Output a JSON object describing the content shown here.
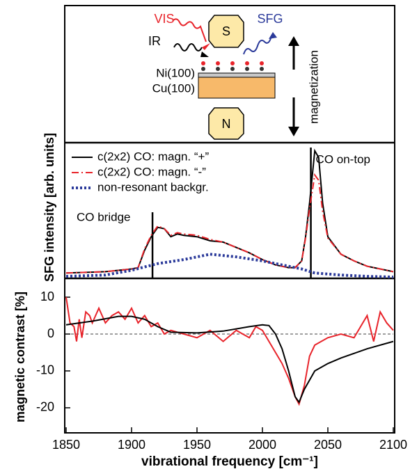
{
  "schematic": {
    "vis": "VIS",
    "ir": "IR",
    "sfg": "SFG",
    "south": "S",
    "north": "N",
    "ni": "Ni(100)",
    "cu": "Cu(100)",
    "magnetization": "magnetization"
  },
  "chart_data": [
    {
      "type": "line",
      "ylabel": "SFG intensity [arb. units]",
      "xlim": [
        1850,
        2100
      ],
      "ylim": [
        0,
        100
      ],
      "legend": "upper left",
      "annotations": [
        {
          "text": "CO bridge",
          "x": 1916
        },
        {
          "text": "CO on-top",
          "x": 2037
        }
      ],
      "series": [
        {
          "name": "c(2x2) CO: magn. “+”",
          "color": "#000000",
          "style": "solid",
          "x": [
            1850,
            1880,
            1900,
            1905,
            1910,
            1915,
            1920,
            1925,
            1930,
            1935,
            1940,
            1950,
            1960,
            1970,
            1980,
            1990,
            2000,
            2010,
            2020,
            2025,
            2030,
            2033,
            2036,
            2040,
            2043,
            2046,
            2050,
            2060,
            2070,
            2080,
            2090,
            2100
          ],
          "values": [
            4,
            5,
            7,
            8,
            21,
            31,
            38,
            37,
            31,
            33,
            32,
            31,
            28,
            27,
            23,
            19,
            14,
            10,
            8,
            8,
            13,
            31,
            56,
            95,
            90,
            56,
            31,
            18,
            13,
            9,
            7,
            5
          ]
        },
        {
          "name": "c(2x2) CO: magn. “-”",
          "color": "#e8232a",
          "style": "dashdot",
          "x": [
            1850,
            1880,
            1900,
            1905,
            1910,
            1915,
            1920,
            1925,
            1930,
            1935,
            1940,
            1950,
            1960,
            1970,
            1980,
            1990,
            2000,
            2010,
            2020,
            2025,
            2030,
            2033,
            2036,
            2040,
            2043,
            2046,
            2050,
            2060,
            2070,
            2080,
            2090,
            2100
          ],
          "values": [
            4,
            5,
            7,
            8,
            22,
            32,
            39,
            37,
            32,
            34,
            33,
            32,
            29,
            27,
            23,
            19,
            14,
            10,
            8,
            8,
            13,
            30,
            52,
            77,
            73,
            50,
            30,
            18,
            13,
            9,
            7,
            5
          ]
        },
        {
          "name": "non-resonant backgr.",
          "color": "#2b3a9a",
          "style": "dotted",
          "x": [
            1850,
            1880,
            1900,
            1920,
            1940,
            1960,
            1980,
            2000,
            2020,
            2030,
            2040,
            2060,
            2080,
            2100
          ],
          "values": [
            1.5,
            2.5,
            6,
            11,
            14,
            18,
            16,
            13,
            9,
            7,
            4,
            2.5,
            1.5,
            1
          ]
        }
      ]
    },
    {
      "type": "line",
      "ylabel": "magnetic contrast [%]",
      "xlabel": "vibrational frequency [cm⁻¹]",
      "xlim": [
        1850,
        2100
      ],
      "xticks": [
        1850,
        1900,
        1950,
        2000,
        2050,
        2100
      ],
      "ylim": [
        -26.8,
        15.1
      ],
      "yticks": [
        -20,
        -10,
        0,
        10
      ],
      "zero_line": true,
      "series": [
        {
          "color": "#e8232a",
          "style": "solid",
          "x": [
            1850,
            1853,
            1856,
            1858,
            1860,
            1862,
            1865,
            1868,
            1870,
            1875,
            1880,
            1885,
            1890,
            1895,
            1900,
            1905,
            1910,
            1915,
            1920,
            1925,
            1930,
            1940,
            1950,
            1960,
            1970,
            1980,
            1990,
            1995,
            2000,
            2005,
            2010,
            2015,
            2020,
            2025,
            2028,
            2032,
            2036,
            2040,
            2050,
            2060,
            2070,
            2075,
            2080,
            2085,
            2090,
            2095,
            2100
          ],
          "values": [
            10,
            3,
            2,
            -2,
            4,
            -1,
            6,
            5,
            3,
            7,
            3,
            5,
            6,
            4,
            7,
            3,
            5,
            2,
            3,
            0,
            1,
            0,
            -1,
            1,
            -2,
            1,
            -1,
            2,
            1,
            -2,
            -5,
            -8,
            -12,
            -17,
            -19,
            -14,
            -6,
            -3,
            -1,
            0,
            -1,
            2,
            5,
            -2,
            6,
            3,
            1
          ]
        },
        {
          "color": "#000000",
          "style": "solid",
          "x": [
            1850,
            1870,
            1890,
            1900,
            1910,
            1920,
            1930,
            1950,
            1970,
            1990,
            2000,
            2005,
            2010,
            2015,
            2020,
            2025,
            2028,
            2032,
            2040,
            2050,
            2060,
            2080,
            2100
          ],
          "values": [
            2.5,
            3.5,
            4.8,
            4.8,
            4,
            2,
            0.5,
            0.3,
            0.8,
            2,
            2.5,
            2.3,
            0,
            -4,
            -10,
            -17,
            -18.5,
            -15,
            -10,
            -8,
            -6.5,
            -4,
            -2
          ]
        }
      ]
    }
  ]
}
